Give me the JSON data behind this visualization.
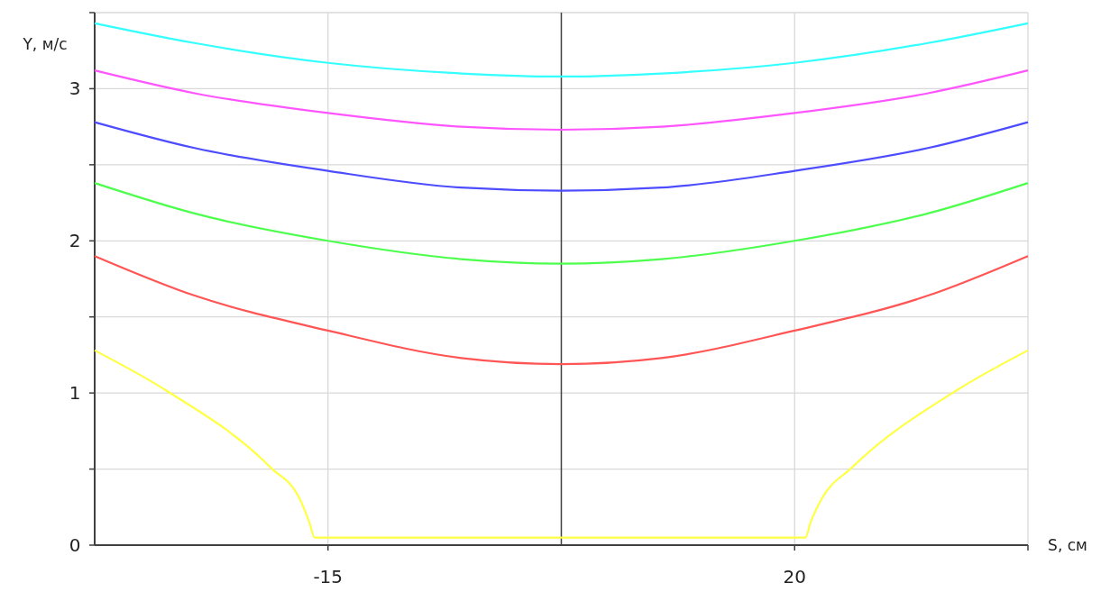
{
  "chart_data": {
    "type": "line",
    "xlabel": "S, см",
    "ylabel": "Y, м/с",
    "xlim": [
      -32.5,
      37.5
    ],
    "ylim": [
      0,
      3.5
    ],
    "xticks": [
      -15,
      20,
      {
        "value": 37.5,
        "label": null
      }
    ],
    "yticks": [
      0,
      {
        "value": 0.5,
        "label": null
      },
      1,
      {
        "value": 1.5,
        "label": null
      },
      2,
      {
        "value": 2.5,
        "label": null
      },
      3,
      {
        "value": 3.5,
        "label": null
      }
    ],
    "grid": true,
    "line_style": "solid",
    "marker": "none",
    "ref_lines": [
      {
        "axis": "x",
        "value": 2.5,
        "color": "#404040"
      }
    ],
    "series": [
      {
        "color": "#33ffff",
        "x": [
          -32.5,
          -25,
          -15,
          -5,
          2.5,
          10,
          20,
          30,
          37.5
        ],
        "values": [
          3.43,
          3.3,
          3.17,
          3.1,
          3.08,
          3.1,
          3.17,
          3.3,
          3.43
        ]
      },
      {
        "color": "#ff55ff",
        "x": [
          -32.5,
          -25,
          -15,
          -5,
          2.5,
          10,
          20,
          30,
          37.5
        ],
        "values": [
          3.12,
          2.97,
          2.84,
          2.75,
          2.73,
          2.75,
          2.84,
          2.97,
          3.12
        ]
      },
      {
        "color": "#4d4dff",
        "x": [
          -32.5,
          -25,
          -15,
          -5,
          2.5,
          10,
          20,
          30,
          37.5
        ],
        "values": [
          2.78,
          2.61,
          2.46,
          2.35,
          2.33,
          2.35,
          2.46,
          2.61,
          2.78
        ]
      },
      {
        "color": "#4dff4d",
        "x": [
          -32.5,
          -25,
          -15,
          -5,
          2.5,
          10,
          20,
          30,
          37.5
        ],
        "values": [
          2.38,
          2.18,
          2.0,
          1.88,
          1.85,
          1.88,
          2.0,
          2.18,
          2.38
        ]
      },
      {
        "color": "#ff5555",
        "x": [
          -32.5,
          -25,
          -15,
          -5,
          2.5,
          10,
          20,
          30,
          37.5
        ],
        "values": [
          1.9,
          1.64,
          1.41,
          1.23,
          1.19,
          1.23,
          1.41,
          1.64,
          1.9
        ]
      },
      {
        "color": "#ffff44",
        "x": [
          -32.5,
          -27.2,
          -19.3,
          -17.1,
          -16.4,
          -16,
          20.8,
          21.2,
          22,
          24.3,
          32.2,
          37.5
        ],
        "values": [
          1.28,
          1.02,
          0.51,
          0.3,
          0.15,
          0.05,
          0.05,
          0.15,
          0.3,
          0.51,
          1.02,
          1.28
        ]
      }
    ]
  }
}
